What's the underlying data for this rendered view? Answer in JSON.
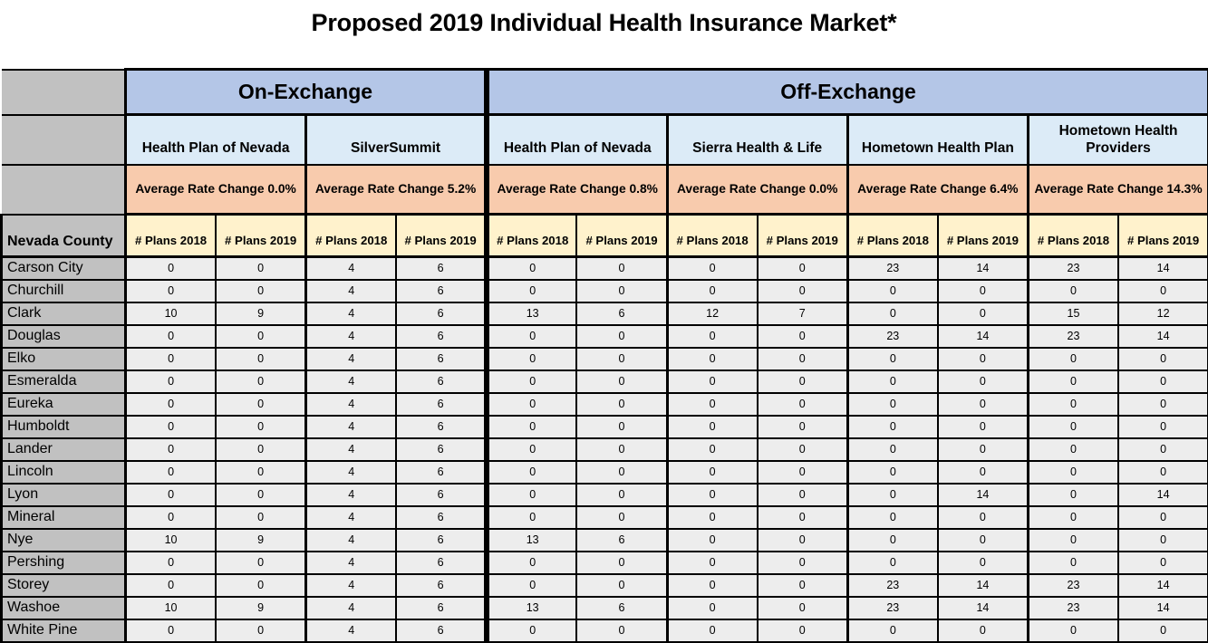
{
  "title": "Proposed 2019 Individual Health Insurance Market*",
  "table": {
    "county_header": "Nevada County",
    "plan_col_headers": [
      "# Plans 2018",
      "# Plans 2019"
    ],
    "exchanges": [
      {
        "label": "On-Exchange",
        "carriers": [
          {
            "name": "Health Plan of Nevada",
            "rate_change": "Average Rate Change 0.0%"
          },
          {
            "name": "SilverSummit",
            "rate_change": "Average Rate Change 5.2%"
          }
        ]
      },
      {
        "label": "Off-Exchange",
        "carriers": [
          {
            "name": "Health Plan of Nevada",
            "rate_change": "Average Rate Change 0.8%"
          },
          {
            "name": "Sierra Health & Life",
            "rate_change": "Average Rate Change 0.0%"
          },
          {
            "name": "Hometown Health Plan",
            "rate_change": "Average Rate Change 6.4%"
          },
          {
            "name": "Hometown Health Providers",
            "rate_change": "Average Rate Change 14.3%"
          }
        ]
      }
    ],
    "rows": [
      {
        "county": "Carson City",
        "values": [
          0,
          0,
          4,
          6,
          0,
          0,
          0,
          0,
          23,
          14,
          23,
          14
        ]
      },
      {
        "county": "Churchill",
        "values": [
          0,
          0,
          4,
          6,
          0,
          0,
          0,
          0,
          0,
          0,
          0,
          0
        ]
      },
      {
        "county": "Clark",
        "values": [
          10,
          9,
          4,
          6,
          13,
          6,
          12,
          7,
          0,
          0,
          15,
          12
        ]
      },
      {
        "county": "Douglas",
        "values": [
          0,
          0,
          4,
          6,
          0,
          0,
          0,
          0,
          23,
          14,
          23,
          14
        ]
      },
      {
        "county": "Elko",
        "values": [
          0,
          0,
          4,
          6,
          0,
          0,
          0,
          0,
          0,
          0,
          0,
          0
        ]
      },
      {
        "county": "Esmeralda",
        "values": [
          0,
          0,
          4,
          6,
          0,
          0,
          0,
          0,
          0,
          0,
          0,
          0
        ]
      },
      {
        "county": "Eureka",
        "values": [
          0,
          0,
          4,
          6,
          0,
          0,
          0,
          0,
          0,
          0,
          0,
          0
        ]
      },
      {
        "county": "Humboldt",
        "values": [
          0,
          0,
          4,
          6,
          0,
          0,
          0,
          0,
          0,
          0,
          0,
          0
        ]
      },
      {
        "county": "Lander",
        "values": [
          0,
          0,
          4,
          6,
          0,
          0,
          0,
          0,
          0,
          0,
          0,
          0
        ]
      },
      {
        "county": "Lincoln",
        "values": [
          0,
          0,
          4,
          6,
          0,
          0,
          0,
          0,
          0,
          0,
          0,
          0
        ]
      },
      {
        "county": "Lyon",
        "values": [
          0,
          0,
          4,
          6,
          0,
          0,
          0,
          0,
          0,
          14,
          0,
          14
        ]
      },
      {
        "county": "Mineral",
        "values": [
          0,
          0,
          4,
          6,
          0,
          0,
          0,
          0,
          0,
          0,
          0,
          0
        ]
      },
      {
        "county": "Nye",
        "values": [
          10,
          9,
          4,
          6,
          13,
          6,
          0,
          0,
          0,
          0,
          0,
          0
        ]
      },
      {
        "county": "Pershing",
        "values": [
          0,
          0,
          4,
          6,
          0,
          0,
          0,
          0,
          0,
          0,
          0,
          0
        ]
      },
      {
        "county": "Storey",
        "values": [
          0,
          0,
          4,
          6,
          0,
          0,
          0,
          0,
          23,
          14,
          23,
          14
        ]
      },
      {
        "county": "Washoe",
        "values": [
          10,
          9,
          4,
          6,
          13,
          6,
          0,
          0,
          23,
          14,
          23,
          14
        ]
      },
      {
        "county": "White Pine",
        "values": [
          0,
          0,
          4,
          6,
          0,
          0,
          0,
          0,
          0,
          0,
          0,
          0
        ]
      }
    ]
  },
  "colors": {
    "background": "#ffffff",
    "banner": "#b4c6e7",
    "company": "#dcebf7",
    "rate": "#f8cbad",
    "plans": "#fff2cc",
    "county": "#c1c1c1",
    "cell": "#ededed",
    "border": "#000000"
  }
}
